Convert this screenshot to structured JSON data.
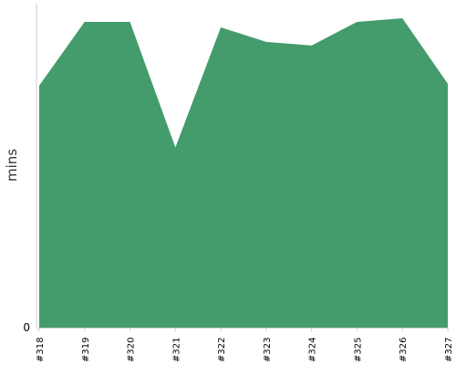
{
  "chart_data": {
    "type": "area",
    "categories": [
      "#318",
      "#319",
      "#320",
      "#321",
      "#322",
      "#323",
      "#324",
      "#325",
      "#326",
      "#327"
    ],
    "series": [
      {
        "values": [
          66.5,
          84,
          84,
          49.5,
          82.5,
          78.5,
          77.5,
          84,
          85,
          67
        ]
      }
    ],
    "xlabel": "",
    "ylabel": "mins",
    "ylim": [
      0,
      85
    ],
    "y_ticks": [
      "0"
    ],
    "grid": false,
    "legend": "none",
    "colors": {
      "fill": "#449c6c",
      "axis": "#cccccc"
    }
  }
}
